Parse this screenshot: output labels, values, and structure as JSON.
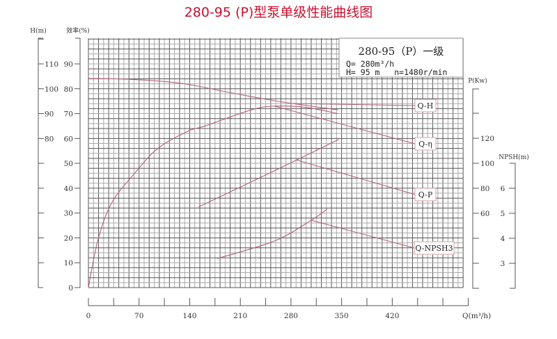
{
  "chart_data": {
    "type": "line",
    "title": "280-95 (P)型泵单级性能曲线图",
    "info_box": {
      "model": "280-95（P）一级",
      "flow": "Q= 280m³/h",
      "head_speed": "H= 95 m   n=1480r/min"
    },
    "x_axis": {
      "label": "Q(m³/h)",
      "range": [
        0,
        518
      ],
      "ticks": [
        0,
        70,
        140,
        210,
        280,
        350,
        420
      ],
      "minor_tick_step": 35
    },
    "axes": {
      "head": {
        "label": "H(m)",
        "ticks": [
          80,
          90,
          100,
          110
        ],
        "range": [
          20,
          120
        ]
      },
      "efficiency": {
        "label": "效率(%)",
        "ticks": [
          0,
          10,
          20,
          30,
          40,
          50,
          60,
          70,
          80,
          90
        ],
        "range": [
          0,
          100
        ]
      },
      "power": {
        "label": "P(Kw)",
        "ticks": [
          60,
          80,
          100,
          120
        ],
        "range": [
          0,
          160
        ]
      },
      "npsh": {
        "label": "NPSH(m)",
        "ticks": [
          3,
          4,
          5,
          6
        ],
        "range": [
          2,
          7
        ]
      }
    },
    "grid": true,
    "series": [
      {
        "name": "Q-H",
        "axis": "head",
        "points": [
          [
            0,
            104.1
          ],
          [
            58,
            103.8
          ],
          [
            128,
            102.2
          ],
          [
            195,
            98.5
          ],
          [
            263,
            94.9
          ],
          [
            345,
            91.5
          ]
        ]
      },
      {
        "name": "Q-η",
        "axis": "efficiency",
        "points": [
          [
            0,
            0
          ],
          [
            13,
            19
          ],
          [
            32,
            34
          ],
          [
            64,
            46
          ],
          [
            96,
            56
          ],
          [
            138,
            63
          ],
          [
            161,
            65
          ],
          [
            225,
            71.5
          ],
          [
            257,
            73
          ],
          [
            300,
            72.5
          ],
          [
            345,
            70
          ]
        ]
      },
      {
        "name": "Q-P",
        "axis": "power",
        "points": [
          [
            152,
            65
          ],
          [
            250,
            92
          ],
          [
            346,
            119
          ]
        ]
      },
      {
        "name": "Q-NPSH3",
        "axis": "npsh",
        "points": [
          [
            178,
            3.19
          ],
          [
            257,
            3.89
          ],
          [
            308,
            4.72
          ],
          [
            330,
            5.17
          ]
        ]
      }
    ],
    "colors": {
      "title": "#c8102e",
      "curve": "#b0607a",
      "grid_dark": "#555555",
      "grid_light": "#a8a8a8"
    }
  }
}
